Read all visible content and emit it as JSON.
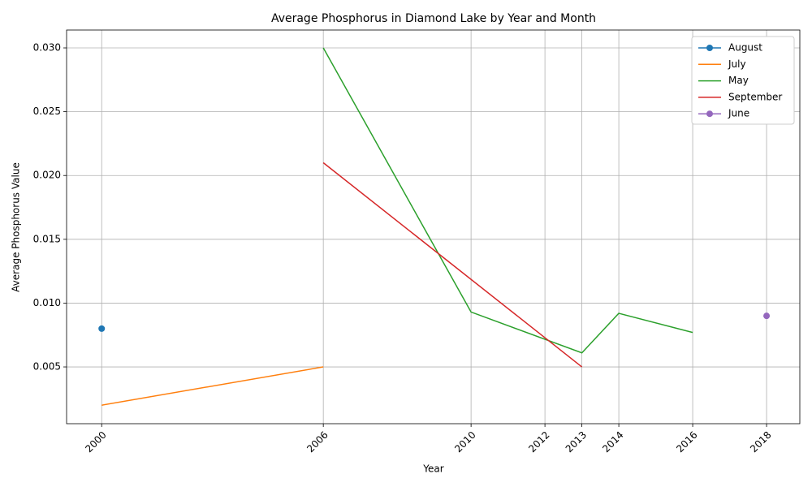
{
  "chart_data": {
    "type": "line",
    "title": "Average Phosphorus in Diamond Lake by Year and Month",
    "x_label": "Year",
    "y_label": "Average Phosphorus Value",
    "xlim": [
      1999.05,
      2018.9
    ],
    "ylim": [
      0.00055,
      0.0314
    ],
    "xticks": [
      2000,
      2006,
      2010,
      2012,
      2013,
      2014,
      2016,
      2018
    ],
    "yticks": [
      0.005,
      {
        "value": 0.01,
        "label": "0.010"
      },
      0.015,
      {
        "value": 0.02,
        "label": "0.020"
      },
      0.025,
      {
        "value": 0.03,
        "label": "0.030"
      }
    ],
    "grid": true,
    "legend": "upper-right",
    "series": [
      {
        "name": "August",
        "color": "#1f77b4",
        "marker": true,
        "x": [
          2000
        ],
        "values": [
          0.008
        ]
      },
      {
        "name": "July",
        "color": "#ff7f0e",
        "marker": false,
        "x": [
          2000,
          2006
        ],
        "values": [
          0.002,
          0.005
        ]
      },
      {
        "name": "May",
        "color": "#2ca02c",
        "marker": false,
        "x": [
          2006,
          2010,
          2013,
          2014,
          2016
        ],
        "values": [
          0.03,
          0.0093,
          0.0061,
          0.0092,
          0.0077
        ]
      },
      {
        "name": "September",
        "color": "#d62728",
        "marker": false,
        "x": [
          2006,
          2013
        ],
        "values": [
          0.021,
          0.005
        ]
      },
      {
        "name": "June",
        "color": "#9467bd",
        "marker": true,
        "x": [
          2018
        ],
        "values": [
          0.009
        ]
      }
    ]
  }
}
